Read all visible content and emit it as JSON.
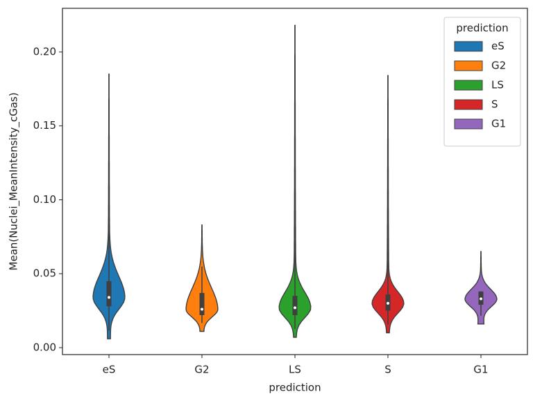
{
  "chart_data": {
    "type": "violin",
    "xlabel": "prediction",
    "ylabel": "Mean(Nuclei_MeanIntensity_cGas)",
    "categories": [
      "eS",
      "G2",
      "LS",
      "S",
      "G1"
    ],
    "series": [
      {
        "name": "eS",
        "color": "#1f77b4",
        "min": 0.006,
        "q1": 0.028,
        "median": 0.034,
        "q3": 0.045,
        "max": 0.185
      },
      {
        "name": "G2",
        "color": "#ff7f0e",
        "min": 0.011,
        "q1": 0.022,
        "median": 0.026,
        "q3": 0.037,
        "max": 0.083
      },
      {
        "name": "LS",
        "color": "#2ca02c",
        "min": 0.007,
        "q1": 0.022,
        "median": 0.027,
        "q3": 0.035,
        "max": 0.218
      },
      {
        "name": "S",
        "color": "#d62728",
        "min": 0.01,
        "q1": 0.025,
        "median": 0.03,
        "q3": 0.036,
        "max": 0.184
      },
      {
        "name": "G1",
        "color": "#9467bd",
        "min": 0.016,
        "q1": 0.029,
        "median": 0.033,
        "q3": 0.038,
        "max": 0.065
      }
    ],
    "ylim": [
      -0.0047,
      0.2295
    ],
    "yticks": [
      {
        "value": 0,
        "label": "0.00"
      },
      {
        "value": 0.05,
        "label": "0.05"
      },
      {
        "value": 0.1,
        "label": "0.10"
      },
      {
        "value": 0.15,
        "label": "0.15"
      },
      {
        "value": 0.2,
        "label": "0.20"
      }
    ],
    "legend_title": "prediction",
    "legend": "upper right"
  }
}
